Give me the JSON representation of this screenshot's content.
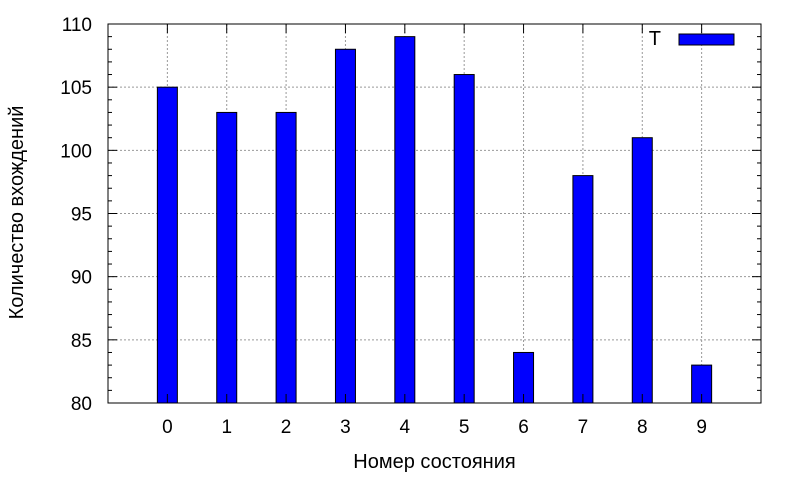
{
  "chart_data": {
    "type": "bar",
    "categories": [
      "0",
      "1",
      "2",
      "3",
      "4",
      "5",
      "6",
      "7",
      "8",
      "9"
    ],
    "series": [
      {
        "name": "T",
        "values": [
          105,
          103,
          103,
          108,
          109,
          106,
          84,
          98,
          101,
          83
        ]
      }
    ],
    "title": "",
    "xlabel": "Номер состояния",
    "ylabel": "Количество вхождений",
    "ylim": [
      80,
      110
    ],
    "yticks": [
      "80",
      "85",
      "90",
      "95",
      "100",
      "105",
      "110"
    ],
    "grid": true,
    "legend_position": "top-right",
    "bar_color": "#0000ff"
  }
}
